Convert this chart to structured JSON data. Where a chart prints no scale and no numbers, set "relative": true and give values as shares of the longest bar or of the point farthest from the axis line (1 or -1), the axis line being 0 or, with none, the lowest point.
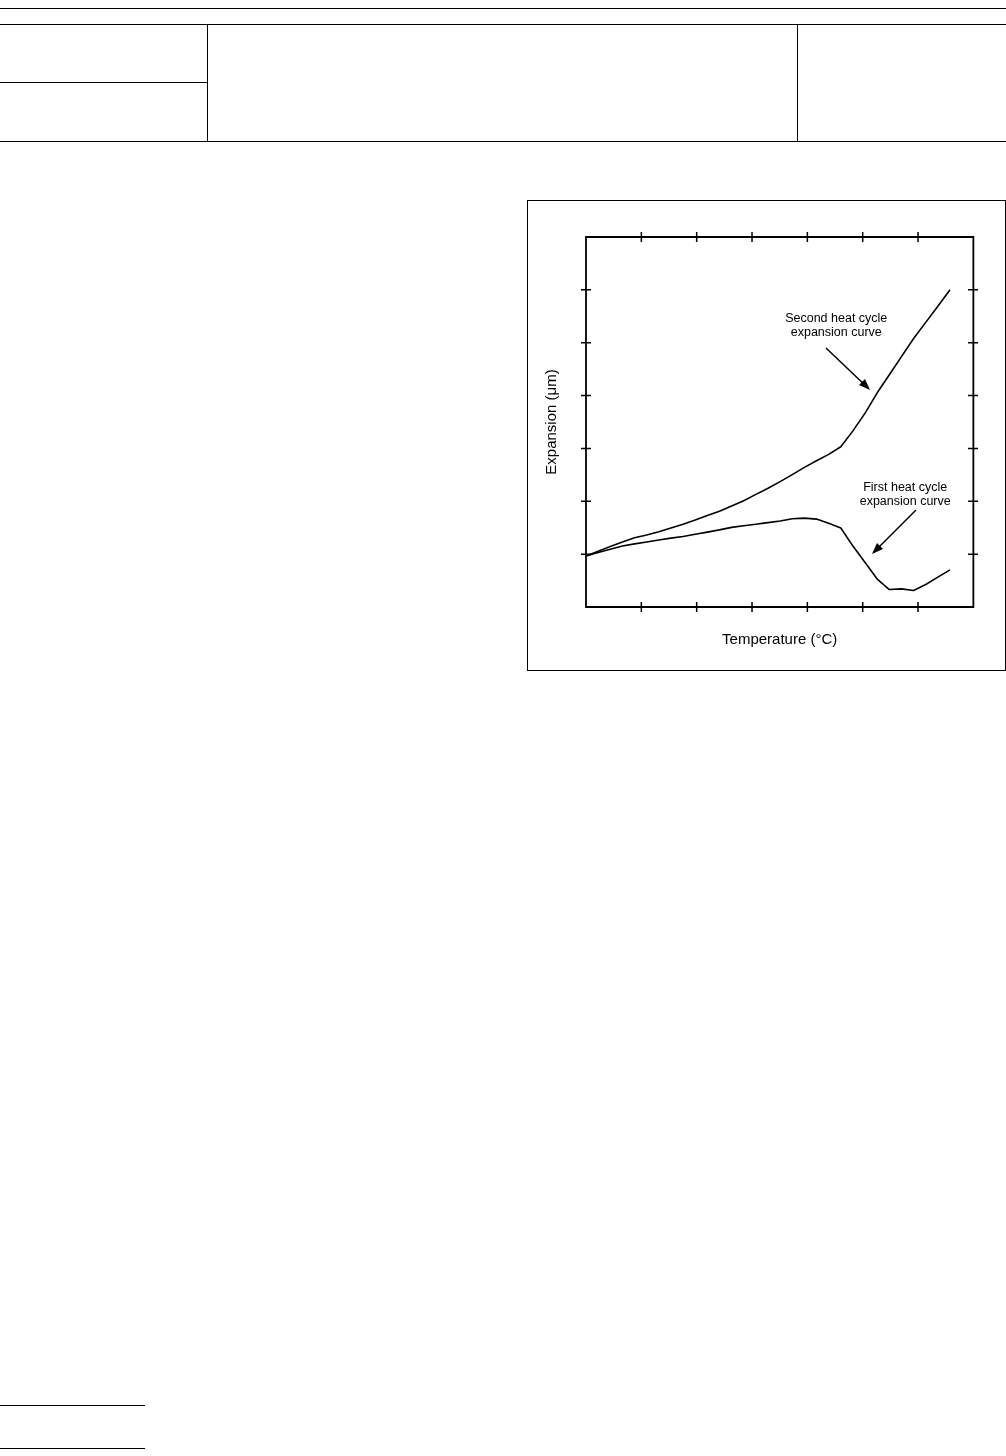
{
  "chart_data": {
    "type": "line",
    "relative": true,
    "xlabel": "Temperature (°C)",
    "ylabel": "Expansion (μm)",
    "categories": [
      null,
      null,
      null,
      null,
      null,
      null,
      null,
      null,
      null,
      null,
      null,
      null,
      null,
      null,
      null,
      null,
      null,
      null,
      null,
      null,
      null,
      null,
      null,
      null,
      null,
      null,
      null,
      null,
      null,
      null,
      null
    ],
    "series": [
      {
        "color": "#000000",
        "values": [
          0.161,
          0.176,
          0.191,
          0.205,
          0.218,
          0.227,
          0.237,
          0.249,
          0.261,
          0.274,
          0.288,
          0.302,
          0.318,
          0.335,
          0.355,
          0.374,
          0.395,
          0.417,
          0.44,
          0.461,
          0.481,
          0.505,
          0.555,
          0.611,
          0.675,
          0.732,
          0.789,
          0.846,
          0.897,
          0.948,
          1
        ]
      },
      {
        "color": "#000000",
        "values": [
          0.161,
          0.172,
          0.182,
          0.192,
          0.199,
          0.205,
          0.211,
          0.217,
          0.222,
          0.229,
          0.236,
          0.243,
          0.251,
          0.256,
          0.261,
          0.266,
          0.271,
          0.278,
          0.28,
          0.277,
          0.264,
          0.249,
          0.192,
          0.14,
          0.088,
          0.055,
          0.057,
          0.052,
          0.071,
          0.094,
          0.117
        ]
      }
    ],
    "annotations": [
      "Second heat cycle\nexpansion curve",
      "First heat cycle\nexpansion curve"
    ],
    "grid": false,
    "legend": false,
    "marker": "none",
    "line_style": "solid"
  }
}
